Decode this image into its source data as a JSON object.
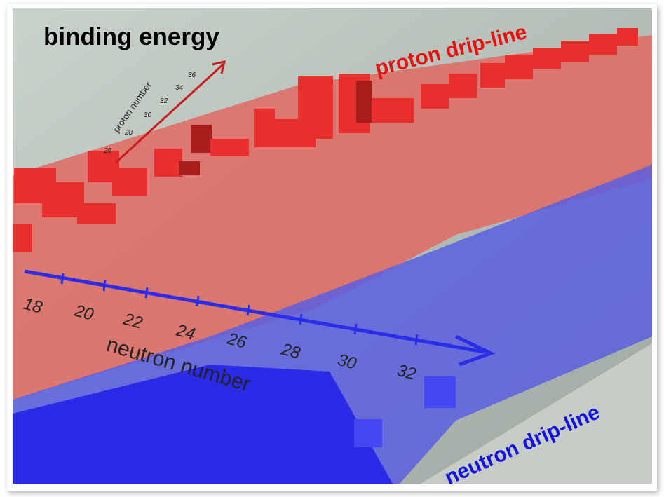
{
  "title": "binding energy",
  "proton_drip_line": "proton drip-line",
  "neutron_drip_line": "neutron drip-line",
  "proton_axis": {
    "label": "proton number",
    "ticks": [
      26,
      28,
      30,
      32,
      34,
      36
    ]
  },
  "neutron_axis": {
    "label": "neutron number",
    "ticks": [
      18,
      20,
      22,
      24,
      26,
      28,
      30,
      32
    ]
  }
}
